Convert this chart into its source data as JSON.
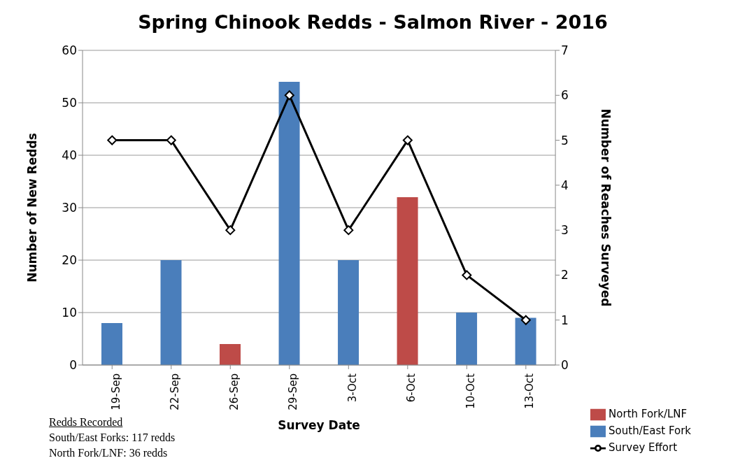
{
  "chart_data": {
    "type": "bar",
    "title": "Spring Chinook Redds - Salmon River - 2016",
    "xlabel": "Survey Date",
    "ylabel": "Number of New Redds",
    "y2label": "Number of Reaches Surveyed",
    "categories": [
      "19-Sep",
      "22-Sep",
      "26-Sep",
      "29-Sep",
      "3-Oct",
      "6-Oct",
      "10-Oct",
      "13-Oct"
    ],
    "stacked": true,
    "series": [
      {
        "name": "South/East Fork",
        "color": "#4a7ebb",
        "values": [
          8,
          20,
          null,
          54,
          20,
          null,
          10,
          9
        ]
      },
      {
        "name": "North Fork/LNF",
        "color": "#be4b48",
        "values": [
          null,
          null,
          4,
          null,
          null,
          32,
          null,
          null
        ]
      },
      {
        "name": "Survey Effort",
        "type": "line",
        "axis": "y2",
        "color": "#000000",
        "marker": "diamond",
        "line_style": "solid",
        "values": [
          5,
          5,
          3,
          6,
          3,
          5,
          2,
          1
        ]
      }
    ],
    "ylim": [
      0,
      60
    ],
    "yticks": [
      0,
      10,
      20,
      30,
      40,
      50,
      60
    ],
    "y2lim": [
      0,
      7
    ],
    "y2ticks": [
      0,
      1,
      2,
      3,
      4,
      5,
      6,
      7
    ],
    "grid": "y",
    "legend": "bottom right",
    "annotations": [
      "Redds Recorded",
      "South/East Forks: 117 redds",
      "North Fork/LNF: 36 redds"
    ]
  }
}
